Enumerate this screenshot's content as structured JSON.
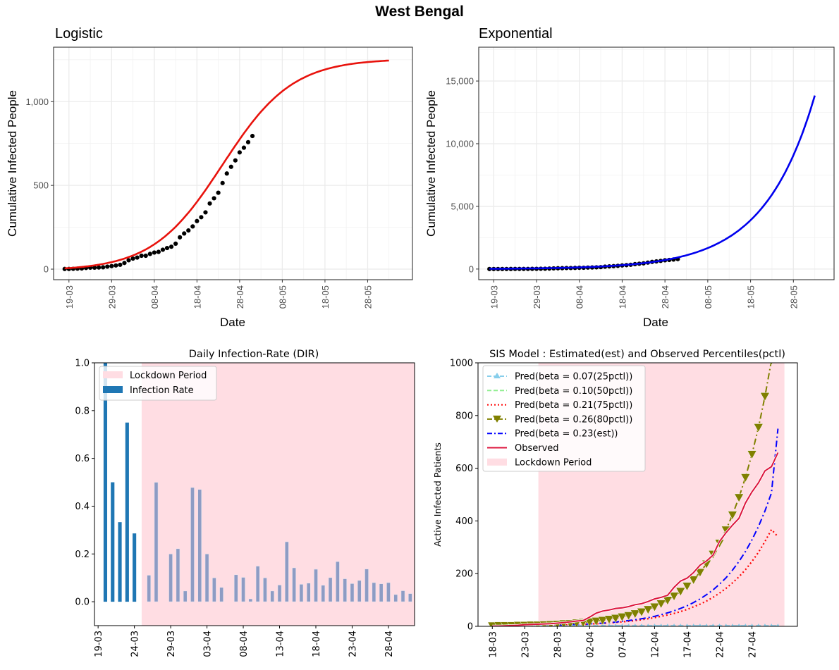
{
  "figure_title": "West Bengal",
  "chart_data": [
    {
      "id": "logistic",
      "type": "scatter",
      "title": "Logistic",
      "xlabel": "Date",
      "ylabel": "Cumulative Infected People",
      "x_tick_labels": [
        "19-03",
        "29-03",
        "08-04",
        "18-04",
        "28-04",
        "08-05",
        "18-05",
        "28-05"
      ],
      "x_tick_days": [
        1,
        11,
        21,
        31,
        41,
        51,
        61,
        71
      ],
      "y_ticks": [
        0,
        500,
        1000
      ],
      "y_tick_labels": [
        "0",
        "500",
        "1,000"
      ],
      "xlim_days": [
        -2.6,
        81.5
      ],
      "ylim": [
        -63,
        1325
      ],
      "grid": true,
      "day0": "18-03",
      "observed": {
        "name": "Observed",
        "color": "#000000",
        "days": [
          0,
          1,
          2,
          3,
          4,
          5,
          6,
          7,
          8,
          9,
          10,
          11,
          12,
          13,
          14,
          15,
          16,
          17,
          18,
          19,
          20,
          21,
          22,
          23,
          24,
          25,
          26,
          27,
          28,
          29,
          30,
          31,
          32,
          33,
          34,
          35,
          36,
          37,
          38,
          39,
          40,
          41,
          42,
          43,
          44
        ],
        "values": [
          1,
          1,
          2,
          3,
          4,
          7,
          9,
          9,
          10,
          11,
          15,
          18,
          22,
          26,
          37,
          53,
          63,
          69,
          80,
          80,
          91,
          99,
          103,
          116,
          126,
          134,
          152,
          190,
          213,
          231,
          255,
          287,
          310,
          339,
          392,
          423,
          456,
          514,
          571,
          611,
          649,
          697,
          725,
          758,
          795
        ]
      },
      "fit": {
        "name": "Logistic fit",
        "color": "#e8120c",
        "model": "logistic",
        "K": 1265,
        "r": 0.122,
        "t_mid": 37.0,
        "offset": -9,
        "day_range": [
          0,
          76
        ]
      }
    },
    {
      "id": "exponential",
      "type": "scatter",
      "title": "Exponential",
      "xlabel": "Date",
      "ylabel": "Cumulative Infected People",
      "x_tick_labels": [
        "19-03",
        "29-03",
        "08-04",
        "18-04",
        "28-04",
        "08-05",
        "18-05",
        "28-05"
      ],
      "x_tick_days": [
        1,
        11,
        21,
        31,
        41,
        51,
        61,
        71
      ],
      "y_ticks": [
        0,
        5000,
        10000,
        15000
      ],
      "y_tick_labels": [
        "0",
        "5,000",
        "10,000",
        "15,000"
      ],
      "xlim_days": [
        -2.5,
        80.5
      ],
      "ylim": [
        -850,
        17700
      ],
      "grid": true,
      "day0": "18-03",
      "observed": {
        "name": "Observed",
        "color": "#000000",
        "days": [
          0,
          1,
          2,
          3,
          4,
          5,
          6,
          7,
          8,
          9,
          10,
          11,
          12,
          13,
          14,
          15,
          16,
          17,
          18,
          19,
          20,
          21,
          22,
          23,
          24,
          25,
          26,
          27,
          28,
          29,
          30,
          31,
          32,
          33,
          34,
          35,
          36,
          37,
          38,
          39,
          40,
          41,
          42,
          43,
          44
        ],
        "values": [
          1,
          1,
          2,
          3,
          4,
          7,
          9,
          9,
          10,
          11,
          15,
          18,
          22,
          26,
          37,
          53,
          63,
          69,
          80,
          80,
          91,
          99,
          103,
          116,
          126,
          134,
          152,
          190,
          213,
          231,
          255,
          287,
          310,
          339,
          392,
          423,
          456,
          514,
          571,
          611,
          649,
          697,
          725,
          758,
          795
        ]
      },
      "fit": {
        "name": "Exponential fit",
        "color": "#0000ee",
        "model": "exponential",
        "a": 22.5,
        "b": 0.0845,
        "day_range": [
          0,
          76
        ]
      }
    },
    {
      "id": "dir",
      "type": "bar",
      "title": "Daily Infection-Rate (DIR)",
      "xlabel": "",
      "ylabel": "",
      "x_tick_labels": [
        "19-03",
        "24-03",
        "29-03",
        "03-04",
        "08-04",
        "13-04",
        "18-04",
        "23-04",
        "28-04"
      ],
      "x_tick_days": [
        0,
        5,
        10,
        15,
        20,
        25,
        30,
        35,
        40
      ],
      "y_ticks": [
        0.0,
        0.2,
        0.4,
        0.6,
        0.8,
        1.0
      ],
      "y_tick_labels": [
        "0.0",
        "0.2",
        "0.4",
        "0.6",
        "0.8",
        "1.0"
      ],
      "xlim_days": [
        -0.5,
        43.6
      ],
      "ylim": [
        -0.1,
        1.0
      ],
      "day0": "19-03",
      "lockdown_start_day": 6.0,
      "legend": [
        {
          "label": "Lockdown Period",
          "color": "#ffdde3"
        },
        {
          "label": "Infection Rate",
          "color": "#1f77b4"
        }
      ],
      "legend_position": "upper-left",
      "bar_color": "#1f77b4",
      "bar_color_in_lockdown": "#8d9cc4",
      "bars": {
        "dates": [
          "20-03",
          "21-03",
          "22-03",
          "23-03",
          "24-03",
          "26-03",
          "27-03",
          "29-03",
          "30-03",
          "31-03",
          "01-04",
          "02-04",
          "03-04",
          "04-04",
          "05-04",
          "07-04",
          "08-04",
          "09-04",
          "10-04",
          "11-04",
          "12-04",
          "13-04",
          "14-04",
          "15-04",
          "16-04",
          "17-04",
          "18-04",
          "19-04",
          "20-04",
          "21-04",
          "22-04",
          "23-04",
          "24-04",
          "25-04",
          "26-04",
          "27-04",
          "28-04",
          "29-04",
          "30-04",
          "01-05"
        ],
        "days": [
          1,
          2,
          3,
          4,
          5,
          7,
          8,
          10,
          11,
          12,
          13,
          14,
          15,
          16,
          17,
          19,
          20,
          21,
          22,
          23,
          24,
          25,
          26,
          27,
          28,
          29,
          30,
          31,
          32,
          33,
          34,
          35,
          36,
          37,
          38,
          39,
          40,
          41,
          42,
          43
        ],
        "values": [
          1.0,
          0.5,
          0.333,
          0.75,
          0.286,
          0.111,
          0.5,
          0.2,
          0.222,
          0.045,
          0.478,
          0.47,
          0.2,
          0.1,
          0.06,
          0.113,
          0.102,
          0.012,
          0.149,
          0.1,
          0.045,
          0.07,
          0.251,
          0.142,
          0.073,
          0.078,
          0.136,
          0.069,
          0.101,
          0.168,
          0.096,
          0.076,
          0.089,
          0.137,
          0.08,
          0.075,
          0.08,
          0.03,
          0.046,
          0.034
        ]
      }
    },
    {
      "id": "sis",
      "type": "line",
      "title": "SIS Model : Estimated(est) and Observed Percentiles(pctl)",
      "xlabel": "",
      "ylabel": "Active Infected Patients",
      "x_tick_labels": [
        "18-03",
        "23-03",
        "28-03",
        "02-04",
        "07-04",
        "12-04",
        "17-04",
        "22-04",
        "27-04"
      ],
      "x_tick_days": [
        0,
        5,
        10,
        15,
        20,
        25,
        30,
        35,
        40
      ],
      "y_ticks": [
        0,
        200,
        400,
        600,
        800,
        1000
      ],
      "y_tick_labels": [
        "0",
        "200",
        "400",
        "600",
        "800",
        "1000"
      ],
      "xlim_days": [
        -2.2,
        47.0
      ],
      "ylim": [
        0,
        1000
      ],
      "day0": "18-03",
      "lockdown_days": [
        7.1,
        45.0
      ],
      "legend_position": "upper-left",
      "series": [
        {
          "name": "Pred(beta = 0.07(25pctl))",
          "color": "#87ceeb",
          "style": "dash",
          "marker": "triangle-up",
          "beta": 0.07
        },
        {
          "name": "Pred(beta = 0.10(50pctl))",
          "color": "#90ee90",
          "style": "dash",
          "marker": "none",
          "beta": 0.1
        },
        {
          "name": "Pred(beta = 0.21(75pctl))",
          "color": "#ff0000",
          "style": "dot",
          "marker": "none",
          "beta": 0.21
        },
        {
          "name": "Pred(beta = 0.26(80pctl))",
          "color": "#808000",
          "style": "dashdot",
          "marker": "triangle-down",
          "beta": 0.26
        },
        {
          "name": "Pred(beta = 0.23(est))",
          "color": "#0000ff",
          "style": "dashdot",
          "marker": "none",
          "beta": 0.23
        },
        {
          "name": "Observed",
          "color": "#dc143c",
          "style": "solid",
          "marker": "none"
        },
        {
          "name": "Lockdown Period",
          "color": "#ffdde3",
          "style": "patch",
          "marker": "none"
        }
      ],
      "pred_days": [
        0,
        1,
        2,
        3,
        4,
        5,
        6,
        7,
        8,
        9,
        10,
        11,
        12,
        13,
        14,
        15,
        16,
        17,
        18,
        19,
        20,
        21,
        22,
        23,
        24,
        25,
        26,
        27,
        28,
        29,
        30,
        31,
        32,
        33,
        34,
        35,
        36,
        37,
        38,
        39,
        40,
        41,
        42,
        43,
        44
      ],
      "pred_values": {
        "beta_0.07": [
          2,
          2,
          2,
          2,
          2,
          2,
          2,
          2,
          2,
          2,
          2,
          2,
          2,
          2,
          2,
          2,
          2,
          2,
          2,
          2,
          2,
          2,
          2,
          2,
          2,
          2,
          2,
          2,
          2,
          2,
          2,
          2,
          2,
          2,
          2,
          2,
          2,
          2,
          2,
          2,
          2,
          2,
          2,
          2,
          2
        ],
        "beta_0.10": [
          1,
          1,
          1,
          1,
          1,
          1,
          1,
          1,
          1,
          1,
          1,
          1,
          1,
          1,
          1,
          1,
          1,
          1,
          1,
          1,
          1,
          1,
          1,
          1,
          1,
          1,
          1,
          1,
          1,
          1,
          1,
          1,
          1,
          1,
          1,
          1,
          1,
          1,
          1,
          1,
          1,
          1,
          1,
          1,
          1
        ],
        "beta_0.21": [
          1,
          1,
          1,
          1,
          2,
          2,
          2,
          3,
          3,
          4,
          4,
          5,
          6,
          6,
          7,
          9,
          10,
          11,
          13,
          15,
          17,
          19,
          22,
          25,
          29,
          33,
          38,
          43,
          49,
          56,
          64,
          74,
          84,
          96,
          110,
          126,
          144,
          165,
          188,
          215,
          246,
          281,
          322,
          367,
          340
        ],
        "beta_0.26": [
          2,
          3,
          3,
          3,
          4,
          4,
          5,
          5,
          6,
          7,
          8,
          10,
          11,
          13,
          15,
          17,
          20,
          23,
          27,
          31,
          36,
          41,
          48,
          55,
          64,
          74,
          86,
          99,
          115,
          133,
          153,
          177,
          205,
          237,
          274,
          316,
          366,
          423,
          489,
          565,
          653,
          755,
          873,
          1009,
          1166
        ],
        "beta_0.23": [
          1,
          1,
          1,
          2,
          2,
          2,
          3,
          3,
          3,
          4,
          5,
          5,
          6,
          7,
          8,
          9,
          11,
          12,
          14,
          16,
          19,
          22,
          25,
          29,
          33,
          38,
          44,
          51,
          59,
          68,
          78,
          90,
          104,
          120,
          138,
          160,
          184,
          213,
          246,
          284,
          328,
          379,
          438,
          506,
          750
        ]
      },
      "observed": {
        "days": [
          0,
          1,
          2,
          3,
          4,
          5,
          6,
          7,
          8,
          9,
          10,
          11,
          12,
          13,
          14,
          15,
          16,
          17,
          18,
          19,
          20,
          21,
          22,
          23,
          24,
          25,
          26,
          27,
          28,
          29,
          30,
          31,
          32,
          33,
          34,
          35,
          36,
          37,
          38,
          39,
          40,
          41,
          42,
          43,
          44
        ],
        "values": [
          1,
          1,
          2,
          3,
          4,
          6,
          7,
          8,
          9,
          10,
          12,
          14,
          17,
          20,
          22,
          35,
          50,
          58,
          62,
          68,
          70,
          75,
          82,
          86,
          94,
          104,
          110,
          118,
          148,
          172,
          183,
          204,
          232,
          248,
          270,
          322,
          355,
          384,
          410,
          468,
          510,
          545,
          590,
          606,
          659
        ]
      }
    }
  ]
}
